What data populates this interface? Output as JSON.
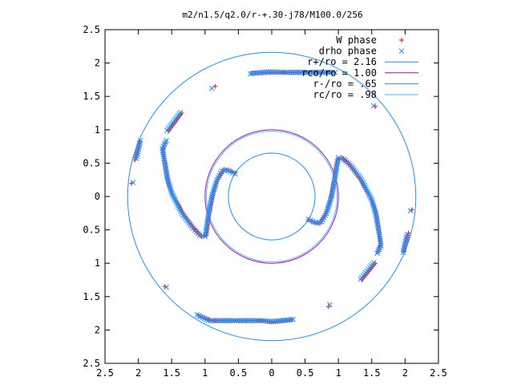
{
  "chart_data": {
    "type": "scatter",
    "title": "m2/n1.5/q2.0/r-+.30-j78/M100.0/256",
    "xlabel": "",
    "ylabel": "",
    "xlim": [
      -2.5,
      2.5
    ],
    "ylim": [
      -2.5,
      2.5
    ],
    "x_ticks": [
      {
        "v": -2.5,
        "label": "2.5"
      },
      {
        "v": -2,
        "label": "2"
      },
      {
        "v": -1.5,
        "label": "1.5"
      },
      {
        "v": -1,
        "label": "1"
      },
      {
        "v": -0.5,
        "label": "0.5"
      },
      {
        "v": 0,
        "label": "0"
      },
      {
        "v": 0.5,
        "label": "0.5"
      },
      {
        "v": 1,
        "label": "1"
      },
      {
        "v": 1.5,
        "label": "1.5"
      },
      {
        "v": 2,
        "label": "2"
      },
      {
        "v": 2.5,
        "label": "2.5"
      }
    ],
    "y_ticks": [
      {
        "v": -2.5,
        "label": "2.5"
      },
      {
        "v": -2,
        "label": "2"
      },
      {
        "v": -1.5,
        "label": "1.5"
      },
      {
        "v": -1,
        "label": "1"
      },
      {
        "v": -0.5,
        "label": "0.5"
      },
      {
        "v": 0,
        "label": "0"
      },
      {
        "v": 0.5,
        "label": "0.5"
      },
      {
        "v": 1,
        "label": "1"
      },
      {
        "v": 1.5,
        "label": "1.5"
      },
      {
        "v": 2,
        "label": "2"
      },
      {
        "v": 2.5,
        "label": "2.5"
      }
    ],
    "grid": false,
    "legend_position": "top-right",
    "colors": {
      "w_phase": "#ff0000",
      "drho_phase": "#1e90ff",
      "r_plus": "#1e90ff",
      "r_o": "#c000c0",
      "r_minus": "#1e90ff",
      "r_c": "#40c0ff"
    },
    "legend": [
      {
        "label": "W phase",
        "kind": "plus",
        "color": "#ff0000"
      },
      {
        "label": "drho phase",
        "kind": "cross",
        "color": "#1e90ff"
      },
      {
        "label": "r+/ro = 2.16",
        "kind": "line",
        "color": "#1e90ff"
      },
      {
        "label": "rco/ro = 1.00",
        "kind": "line",
        "color": "#c000c0"
      },
      {
        "label": "r-/ro = .65",
        "kind": "line",
        "color": "#1e90ff"
      },
      {
        "label": "rc/ro = .98",
        "kind": "line",
        "color": "#40c0ff"
      }
    ],
    "circles": [
      {
        "name": "r+/ro",
        "r": 2.16,
        "color": "#1e90ff"
      },
      {
        "name": "rco/ro",
        "r": 1.0,
        "color": "#c000c0"
      },
      {
        "name": "r-/ro",
        "r": 0.65,
        "color": "#1e90ff"
      },
      {
        "name": "rc/ro",
        "r": 0.98,
        "color": "#40c0ff"
      }
    ],
    "series": [
      {
        "name": "W phase",
        "marker": "plus",
        "points": [
          [
            -0.55,
            0.35
          ],
          [
            -0.6,
            0.38
          ],
          [
            -0.65,
            0.4
          ],
          [
            -0.72,
            0.4
          ],
          [
            -0.8,
            0.28
          ],
          [
            -0.88,
            0.05
          ],
          [
            -0.95,
            -0.3
          ],
          [
            -0.98,
            -0.58
          ],
          [
            -1.05,
            -0.6
          ],
          [
            -1.15,
            -0.5
          ],
          [
            -1.3,
            -0.3
          ],
          [
            -1.45,
            -0.05
          ],
          [
            -1.55,
            0.2
          ],
          [
            -1.6,
            0.5
          ],
          [
            -1.63,
            0.7
          ],
          [
            -1.6,
            0.8
          ],
          [
            -1.35,
            1.25
          ],
          [
            -1.55,
            0.98
          ],
          [
            -2.05,
            0.55
          ],
          [
            -2.0,
            0.72
          ],
          [
            -1.98,
            0.82
          ],
          [
            -2.1,
            0.2
          ],
          [
            -0.85,
            1.65
          ],
          [
            -0.3,
            1.85
          ],
          [
            0.0,
            1.86
          ],
          [
            0.15,
            1.86
          ],
          [
            0.3,
            1.86
          ],
          [
            0.45,
            1.86
          ],
          [
            0.6,
            1.86
          ],
          [
            0.75,
            1.86
          ],
          [
            0.9,
            1.86
          ],
          [
            1.55,
            1.35
          ],
          [
            0.55,
            -0.35
          ],
          [
            0.6,
            -0.38
          ],
          [
            0.65,
            -0.4
          ],
          [
            0.72,
            -0.4
          ],
          [
            0.8,
            -0.28
          ],
          [
            0.88,
            -0.05
          ],
          [
            0.95,
            0.3
          ],
          [
            0.98,
            0.55
          ],
          [
            1.05,
            0.58
          ],
          [
            1.15,
            0.5
          ],
          [
            1.3,
            0.3
          ],
          [
            1.45,
            0.05
          ],
          [
            1.55,
            -0.2
          ],
          [
            1.6,
            -0.5
          ],
          [
            1.63,
            -0.7
          ],
          [
            1.6,
            -0.82
          ],
          [
            2.05,
            -0.55
          ],
          [
            2.0,
            -0.72
          ],
          [
            1.98,
            -0.82
          ],
          [
            2.1,
            -0.2
          ],
          [
            1.55,
            -1.0
          ],
          [
            1.35,
            -1.25
          ],
          [
            0.85,
            -1.65
          ],
          [
            0.3,
            -1.85
          ],
          [
            0.0,
            -1.88
          ],
          [
            -0.15,
            -1.86
          ],
          [
            -0.3,
            -1.86
          ],
          [
            -0.45,
            -1.86
          ],
          [
            -0.6,
            -1.86
          ],
          [
            -0.75,
            -1.86
          ],
          [
            -0.9,
            -1.86
          ],
          [
            -1.1,
            -1.78
          ],
          [
            -1.6,
            -1.35
          ]
        ]
      },
      {
        "name": "drho phase",
        "marker": "cross",
        "points": [
          [
            -0.55,
            0.34
          ],
          [
            -0.62,
            0.37
          ],
          [
            -0.68,
            0.4
          ],
          [
            -0.75,
            0.38
          ],
          [
            -0.82,
            0.25
          ],
          [
            -0.9,
            0.0
          ],
          [
            -0.96,
            -0.35
          ],
          [
            -1.0,
            -0.6
          ],
          [
            -1.08,
            -0.58
          ],
          [
            -1.2,
            -0.45
          ],
          [
            -1.35,
            -0.25
          ],
          [
            -1.5,
            0.05
          ],
          [
            -1.57,
            0.3
          ],
          [
            -1.62,
            0.6
          ],
          [
            -1.64,
            0.72
          ],
          [
            -1.58,
            0.84
          ],
          [
            -1.37,
            1.26
          ],
          [
            -1.57,
            0.99
          ],
          [
            -2.03,
            0.57
          ],
          [
            -1.99,
            0.74
          ],
          [
            -1.97,
            0.84
          ],
          [
            -2.08,
            0.21
          ],
          [
            -0.9,
            1.62
          ],
          [
            -0.32,
            1.84
          ],
          [
            -0.02,
            1.87
          ],
          [
            0.18,
            1.86
          ],
          [
            0.35,
            1.86
          ],
          [
            0.5,
            1.86
          ],
          [
            0.65,
            1.86
          ],
          [
            0.8,
            1.86
          ],
          [
            0.95,
            1.86
          ],
          [
            1.53,
            1.36
          ],
          [
            0.55,
            -0.34
          ],
          [
            0.62,
            -0.37
          ],
          [
            0.68,
            -0.4
          ],
          [
            0.75,
            -0.38
          ],
          [
            0.82,
            -0.25
          ],
          [
            0.9,
            0.0
          ],
          [
            0.96,
            0.35
          ],
          [
            1.0,
            0.58
          ],
          [
            1.08,
            0.56
          ],
          [
            1.2,
            0.45
          ],
          [
            1.35,
            0.25
          ],
          [
            1.5,
            -0.05
          ],
          [
            1.57,
            -0.3
          ],
          [
            1.62,
            -0.6
          ],
          [
            1.64,
            -0.74
          ],
          [
            1.58,
            -0.85
          ],
          [
            2.03,
            -0.57
          ],
          [
            1.99,
            -0.74
          ],
          [
            1.97,
            -0.84
          ],
          [
            2.08,
            -0.21
          ],
          [
            1.53,
            -0.99
          ],
          [
            1.33,
            -1.24
          ],
          [
            0.87,
            -1.62
          ],
          [
            0.32,
            -1.84
          ],
          [
            0.02,
            -1.87
          ],
          [
            -0.18,
            -1.86
          ],
          [
            -0.35,
            -1.86
          ],
          [
            -0.5,
            -1.86
          ],
          [
            -0.65,
            -1.86
          ],
          [
            -0.8,
            -1.86
          ],
          [
            -0.95,
            -1.86
          ],
          [
            -1.12,
            -1.77
          ],
          [
            -1.58,
            -1.36
          ]
        ]
      }
    ]
  }
}
